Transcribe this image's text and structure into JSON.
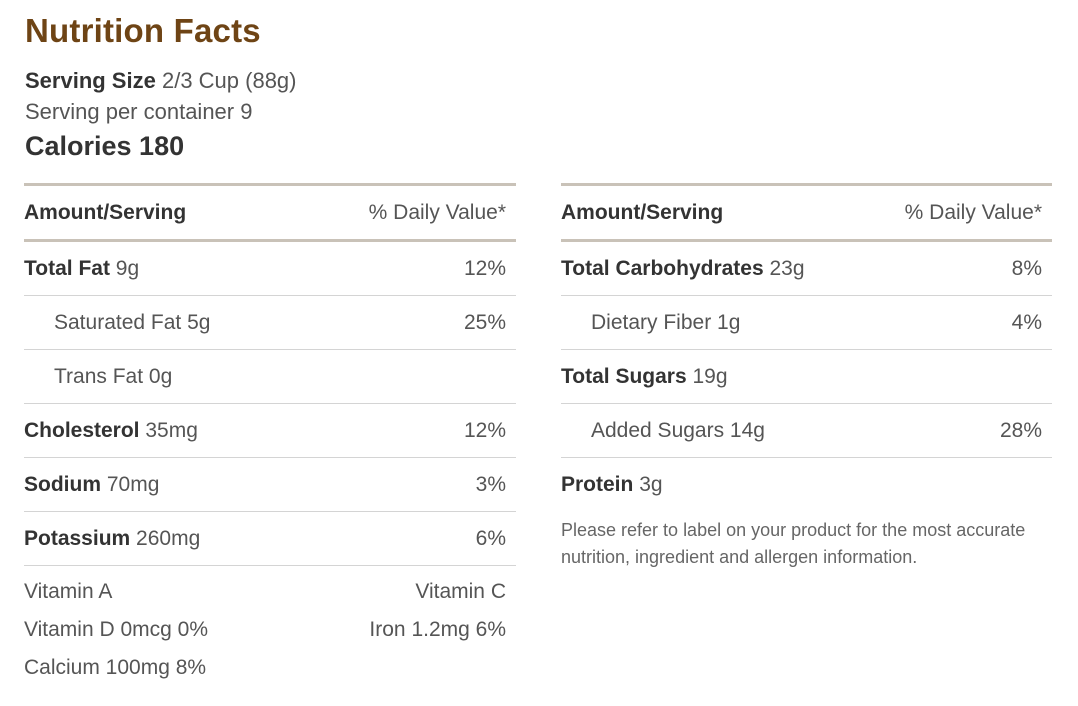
{
  "title": "Nutrition Facts",
  "serving": {
    "size_label": "Serving Size",
    "size_value": "2/3 Cup (88g)",
    "per_container": "Serving per container 9"
  },
  "calories": "Calories 180",
  "left": {
    "header_amount": "Amount/Serving",
    "header_dv": "% Daily Value*",
    "rows": [
      {
        "name": "Total Fat",
        "amount": "9g",
        "dv": "12%"
      },
      {
        "name": "Saturated Fat 5g",
        "amount": "",
        "dv": "25%"
      },
      {
        "name": "Trans Fat 0g",
        "amount": "",
        "dv": ""
      },
      {
        "name": "Cholesterol",
        "amount": "35mg",
        "dv": "12%"
      },
      {
        "name": "Sodium",
        "amount": "70mg",
        "dv": "3%"
      },
      {
        "name": "Potassium",
        "amount": "260mg",
        "dv": "6%"
      }
    ],
    "vitamins": [
      {
        "left": "Vitamin A",
        "right": "Vitamin C"
      },
      {
        "left": "Vitamin D 0mcg 0%",
        "right": "Iron 1.2mg 6%"
      },
      {
        "left": "Calcium 100mg 8%",
        "right": ""
      }
    ]
  },
  "right": {
    "header_amount": "Amount/Serving",
    "header_dv": "% Daily Value*",
    "rows": [
      {
        "name": "Total Carbohydrates",
        "amount": "23g",
        "dv": "8%"
      },
      {
        "name": "Dietary Fiber 1g",
        "amount": "",
        "dv": "4%"
      },
      {
        "name": "Total Sugars",
        "amount": "19g",
        "dv": ""
      },
      {
        "name": "Added Sugars 14g",
        "amount": "",
        "dv": "28%"
      },
      {
        "name": "Protein",
        "amount": "3g",
        "dv": ""
      }
    ],
    "note": "Please refer to label on your product for the most accurate nutrition, ingredient and allergen information."
  }
}
